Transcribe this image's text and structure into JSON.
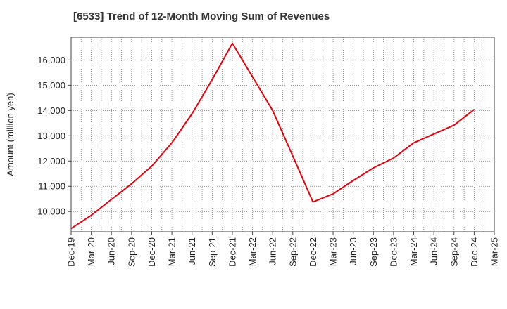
{
  "chart_data": {
    "type": "line",
    "title": "[6533]  Trend of 12-Month Moving Sum of Revenues",
    "ylabel": "Amount (million yen)",
    "xlabel": "",
    "ylim": [
      9200,
      16900
    ],
    "yticks": [
      10000,
      11000,
      12000,
      13000,
      14000,
      15000,
      16000
    ],
    "ytick_labels": [
      "10,000",
      "11,000",
      "12,000",
      "13,000",
      "14,000",
      "15,000",
      "16,000"
    ],
    "x": [
      "Dec-19",
      "Mar-20",
      "Jun-20",
      "Sep-20",
      "Dec-20",
      "Mar-21",
      "Jun-21",
      "Sep-21",
      "Dec-21",
      "Mar-22",
      "Jun-22",
      "Sep-22",
      "Dec-22",
      "Mar-23",
      "Jun-23",
      "Sep-23",
      "Dec-23",
      "Mar-24",
      "Jun-24",
      "Sep-24",
      "Dec-24",
      "Mar-25"
    ],
    "series": [
      {
        "name": "",
        "color": "#e8000b",
        "values": [
          9330,
          9850,
          10480,
          11100,
          11800,
          12720,
          13870,
          15220,
          16660,
          15330,
          14000,
          12200,
          10380,
          10700,
          11230,
          11730,
          12120,
          12720,
          13070,
          13420,
          14040,
          null
        ]
      }
    ],
    "grid": true,
    "legend": "none"
  }
}
